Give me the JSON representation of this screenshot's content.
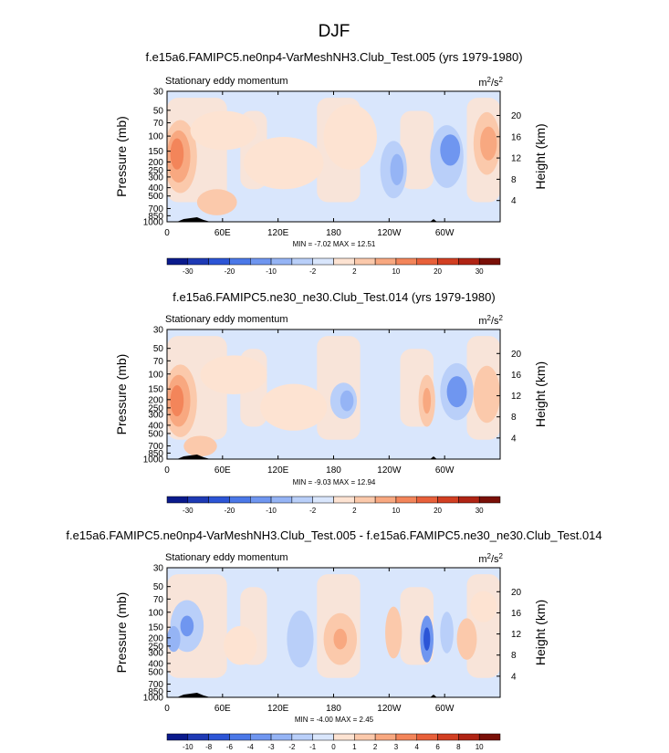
{
  "figure": {
    "title": "DJF"
  },
  "chart_data": [
    {
      "type": "heatmap",
      "title": "f.e15a6.FAMIPC5.ne0np4-VarMeshNH3.Club_Test.005 (yrs 1979-1980)",
      "subtitle": "Stationary eddy momentum",
      "units": "m²/s²",
      "units_base": "m",
      "units_exp": "2",
      "units_sep": "/s",
      "ylabel": "Pressure (mb)",
      "y2label": "Height (km)",
      "x_ticks": [
        "0",
        "60E",
        "120E",
        "180",
        "120W",
        "60W"
      ],
      "y_ticks": [
        "30",
        "50",
        "70",
        "100",
        "150",
        "200",
        "250",
        "300",
        "400",
        "500",
        "700",
        "850",
        "1000"
      ],
      "y_tick_values": [
        30,
        50,
        70,
        100,
        150,
        200,
        250,
        300,
        400,
        500,
        700,
        850,
        1000
      ],
      "y2_ticks": [
        "4",
        "8",
        "12",
        "16",
        "20"
      ],
      "y2_tick_values": [
        4,
        8,
        12,
        16,
        20
      ],
      "x_range_deg_east": [
        0,
        360
      ],
      "y_range_mb": [
        30,
        1000
      ],
      "log_pressure_axis": true,
      "stats": "MIN = -7.02  MAX = 12.51",
      "min": -7.02,
      "max": 12.51,
      "colorbar_labels": [
        "-30",
        "-20",
        "-10",
        "-2",
        "2",
        "10",
        "20",
        "30"
      ],
      "colorbar_colors": [
        "#0a1a8c",
        "#1e3ab5",
        "#2c55d6",
        "#4b78e8",
        "#6f96f0",
        "#95b4f5",
        "#b9cff9",
        "#d9e6fc",
        "#fde3d2",
        "#fbc9ab",
        "#f8a880",
        "#f3855a",
        "#e8603a",
        "#d23f22",
        "#b02414",
        "#7a1008"
      ]
    },
    {
      "type": "heatmap",
      "title": "f.e15a6.FAMIPC5.ne30_ne30.Club_Test.014 (yrs 1979-1980)",
      "subtitle": "Stationary eddy momentum",
      "units": "m²/s²",
      "units_base": "m",
      "units_exp": "2",
      "units_sep": "/s",
      "ylabel": "Pressure (mb)",
      "y2label": "Height (km)",
      "x_ticks": [
        "0",
        "60E",
        "120E",
        "180",
        "120W",
        "60W"
      ],
      "y_ticks": [
        "30",
        "50",
        "70",
        "100",
        "150",
        "200",
        "250",
        "300",
        "400",
        "500",
        "700",
        "850",
        "1000"
      ],
      "y_tick_values": [
        30,
        50,
        70,
        100,
        150,
        200,
        250,
        300,
        400,
        500,
        700,
        850,
        1000
      ],
      "y2_ticks": [
        "4",
        "8",
        "12",
        "16",
        "20"
      ],
      "y2_tick_values": [
        4,
        8,
        12,
        16,
        20
      ],
      "x_range_deg_east": [
        0,
        360
      ],
      "y_range_mb": [
        30,
        1000
      ],
      "log_pressure_axis": true,
      "stats": "MIN = -9.03  MAX = 12.94",
      "min": -9.03,
      "max": 12.94,
      "colorbar_labels": [
        "-30",
        "-20",
        "-10",
        "-2",
        "2",
        "10",
        "20",
        "30"
      ],
      "colorbar_colors": [
        "#0a1a8c",
        "#1e3ab5",
        "#2c55d6",
        "#4b78e8",
        "#6f96f0",
        "#95b4f5",
        "#b9cff9",
        "#d9e6fc",
        "#fde3d2",
        "#fbc9ab",
        "#f8a880",
        "#f3855a",
        "#e8603a",
        "#d23f22",
        "#b02414",
        "#7a1008"
      ]
    },
    {
      "type": "heatmap",
      "title": "f.e15a6.FAMIPC5.ne0np4-VarMeshNH3.Club_Test.005 - f.e15a6.FAMIPC5.ne30_ne30.Club_Test.014",
      "subtitle": "Stationary eddy momentum",
      "units": "m²/s²",
      "units_base": "m",
      "units_exp": "2",
      "units_sep": "/s",
      "ylabel": "Pressure (mb)",
      "y2label": "Height (km)",
      "x_ticks": [
        "0",
        "60E",
        "120E",
        "180",
        "120W",
        "60W"
      ],
      "y_ticks": [
        "30",
        "50",
        "70",
        "100",
        "150",
        "200",
        "250",
        "300",
        "400",
        "500",
        "700",
        "850",
        "1000"
      ],
      "y_tick_values": [
        30,
        50,
        70,
        100,
        150,
        200,
        250,
        300,
        400,
        500,
        700,
        850,
        1000
      ],
      "y2_ticks": [
        "4",
        "8",
        "12",
        "16",
        "20"
      ],
      "y2_tick_values": [
        4,
        8,
        12,
        16,
        20
      ],
      "x_range_deg_east": [
        0,
        360
      ],
      "y_range_mb": [
        30,
        1000
      ],
      "log_pressure_axis": true,
      "stats": "MIN = -4.00  MAX =  2.45",
      "min": -4.0,
      "max": 2.45,
      "colorbar_labels": [
        "-10",
        "-8",
        "-6",
        "-4",
        "-3",
        "-2",
        "-1",
        "0",
        "1",
        "2",
        "3",
        "4",
        "6",
        "8",
        "10"
      ],
      "colorbar_colors": [
        "#0a1a8c",
        "#1e3ab5",
        "#2c55d6",
        "#4b78e8",
        "#6f96f0",
        "#95b4f5",
        "#b9cff9",
        "#d9e6fc",
        "#fde3d2",
        "#fbc9ab",
        "#f8a880",
        "#f3855a",
        "#e8603a",
        "#d23f22",
        "#b02414",
        "#7a1008"
      ]
    }
  ]
}
